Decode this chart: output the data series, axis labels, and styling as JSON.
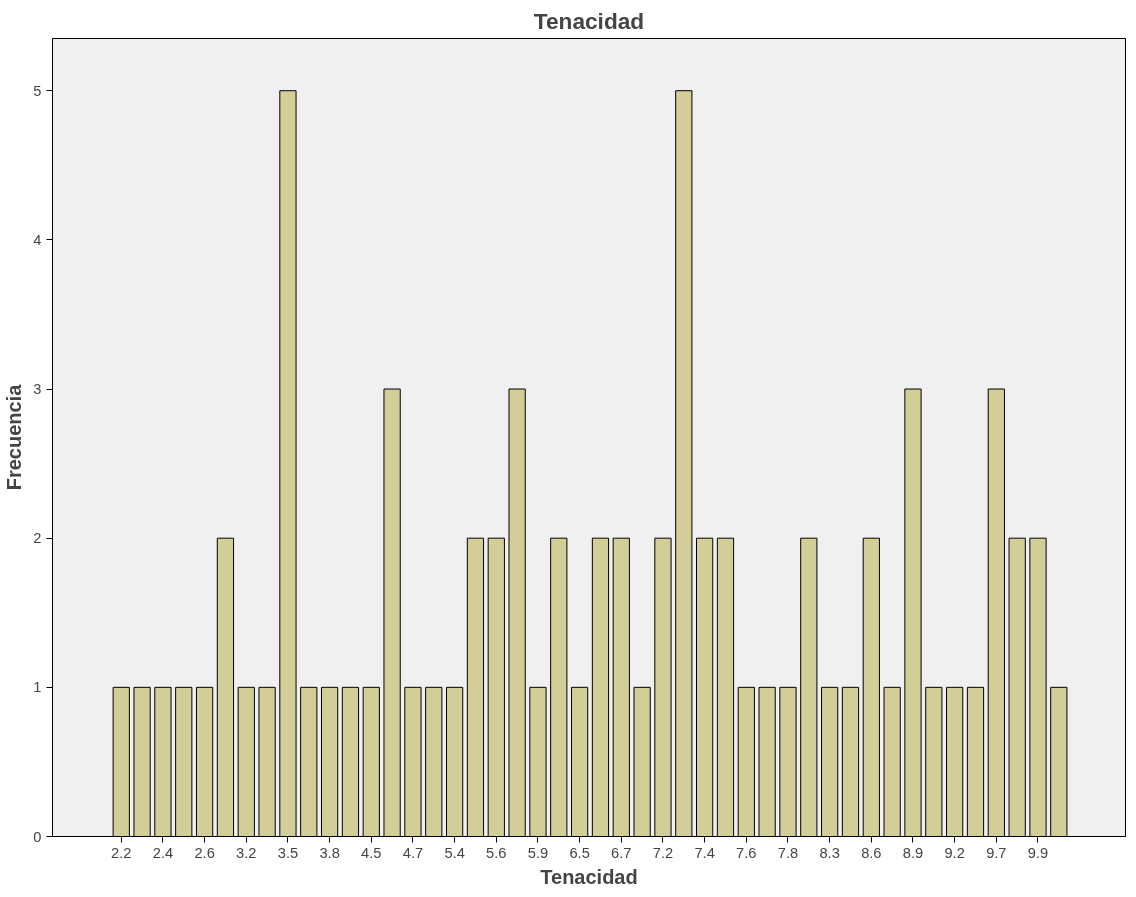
{
  "chart_data": {
    "type": "bar",
    "title": "Tenacidad",
    "xlabel": "Tenacidad",
    "ylabel": "Frecuencia",
    "categories": [
      "2.2",
      null,
      "2.4",
      null,
      "2.6",
      null,
      "3.2",
      null,
      "3.5",
      null,
      "3.8",
      null,
      "4.5",
      null,
      "4.7",
      null,
      "5.4",
      null,
      "5.6",
      null,
      "5.9",
      null,
      "6.5",
      null,
      "6.7",
      null,
      "7.2",
      null,
      "7.4",
      null,
      "7.6",
      null,
      "7.8",
      null,
      "8.3",
      null,
      "8.6",
      null,
      "8.9",
      null,
      "9.2",
      null,
      "9.7",
      null,
      "9.9",
      null
    ],
    "values": [
      1,
      1,
      1,
      1,
      1,
      2,
      1,
      1,
      5,
      1,
      1,
      1,
      1,
      3,
      1,
      1,
      1,
      2,
      2,
      3,
      1,
      2,
      1,
      2,
      2,
      1,
      2,
      5,
      2,
      2,
      1,
      1,
      1,
      2,
      1,
      1,
      2,
      1,
      3,
      1,
      1,
      1,
      3,
      2,
      2,
      1
    ],
    "color": "#d3ce97",
    "ylim": [
      0,
      5.35
    ],
    "yticks": [
      0,
      1,
      2,
      3,
      4,
      5
    ],
    "grid": false
  }
}
